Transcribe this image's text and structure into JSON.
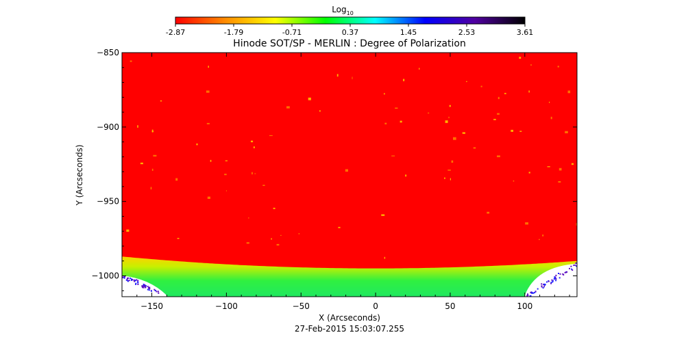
{
  "chart_data": {
    "type": "heatmap",
    "title": "Hinode SOT/SP - MERLIN : Degree of Polarization",
    "colorbar": {
      "label_main": "Log",
      "label_sub": "10",
      "ticks": [
        "-2.87",
        "-1.79",
        "-0.71",
        "0.37",
        "1.45",
        "2.53",
        "3.61"
      ],
      "range": [
        -2.87,
        3.61
      ],
      "colormap": [
        "#ff0000",
        "#ff8c00",
        "#ffff00",
        "#00ff00",
        "#00ffff",
        "#0000ff",
        "#5000a0",
        "#000000"
      ]
    },
    "xlabel": "X (Arcseconds)",
    "ylabel": "Y (Arcseconds)",
    "xlim": [
      -170,
      135
    ],
    "ylim": [
      -1014,
      -850
    ],
    "xticks": [
      -150,
      -100,
      -50,
      0,
      50,
      100
    ],
    "xtick_labels": [
      "−150",
      "−100",
      "−50",
      "0",
      "50",
      "100"
    ],
    "yticks": [
      -850,
      -900,
      -950,
      -1000
    ],
    "ytick_labels": [
      "−850",
      "−900",
      "−950",
      "−1000"
    ],
    "limb": {
      "y_at_center": -995,
      "y_at_edges": -987,
      "ondisk_log_value": -2.8,
      "offlimb_log_value": -0.4,
      "white_region_x": [
        -170,
        -140,
        100,
        135
      ]
    },
    "timestamp": "27-Feb-2015 15:03:07.255"
  }
}
